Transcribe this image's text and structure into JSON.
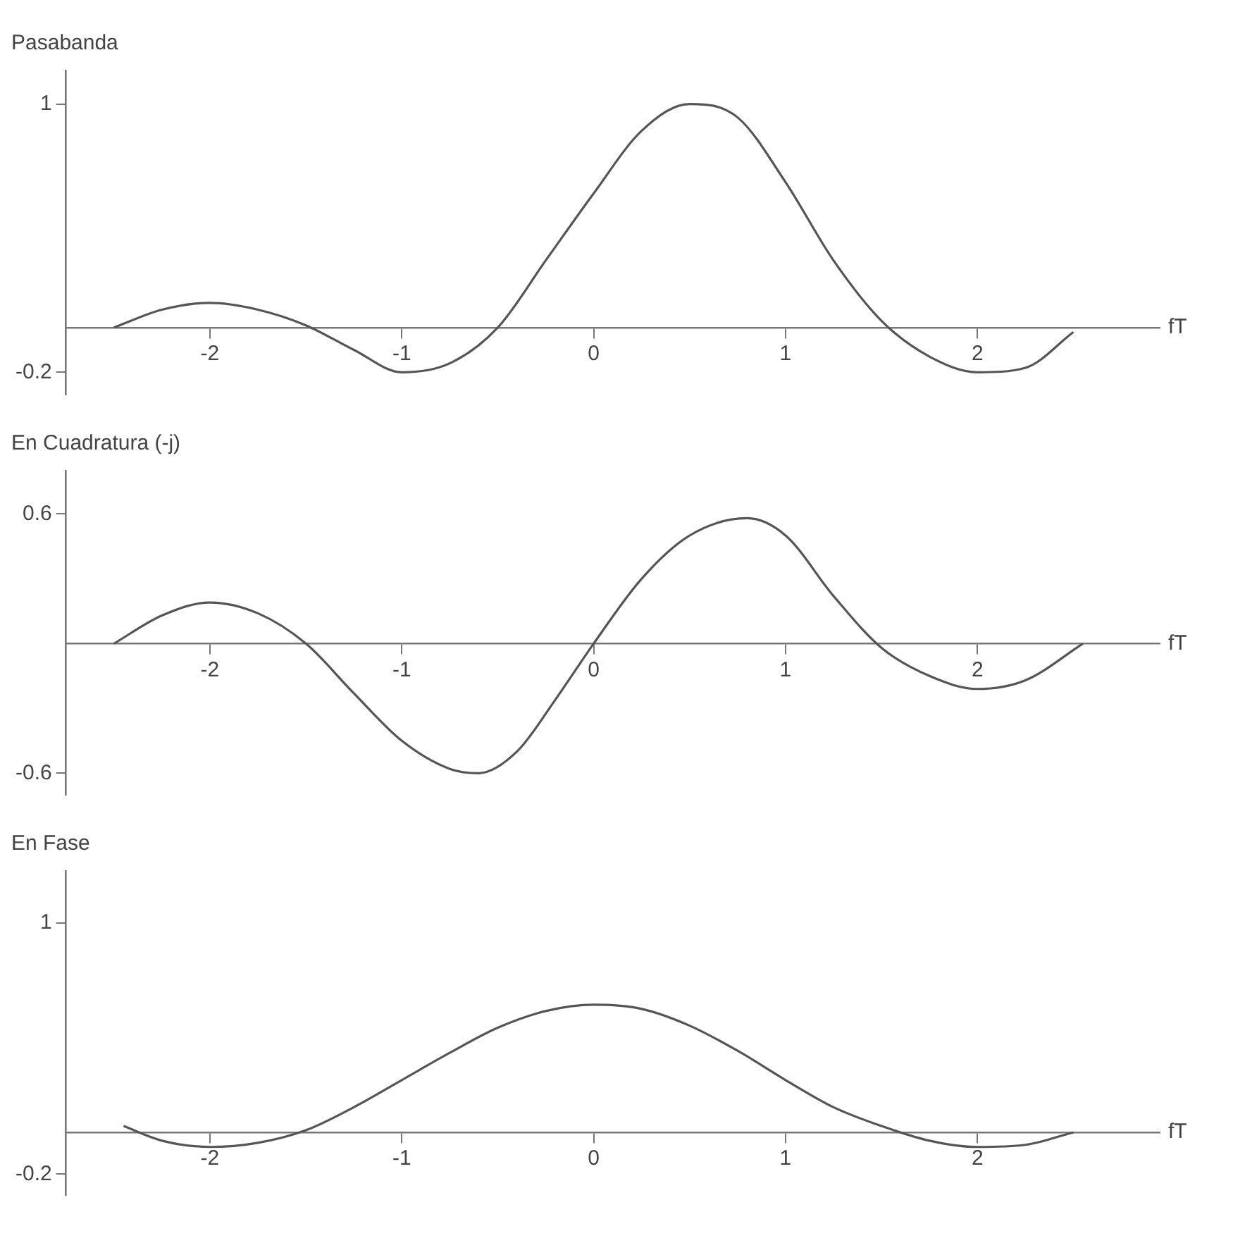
{
  "chart_data": [
    {
      "type": "line",
      "title": "Pasabanda",
      "xlabel": "fT",
      "xlim": [
        -2.75,
        2.95
      ],
      "xticks": [
        -2,
        -1,
        0,
        1,
        2
      ],
      "ylim": [
        -0.3,
        1.15
      ],
      "yticks": [
        -0.2,
        1
      ],
      "grid": false,
      "legend": false,
      "series": [
        {
          "color": "#555555",
          "x": [
            -2.5,
            -2.25,
            -2,
            -1.75,
            -1.5,
            -1.25,
            -1,
            -0.75,
            -0.5,
            -0.25,
            0,
            0.25,
            0.5,
            0.75,
            1,
            1.25,
            1.5,
            1.75,
            2,
            2.25,
            2.5
          ],
          "values": [
            0,
            0.08,
            0.11,
            0.08,
            0.01,
            -0.1,
            -0.2,
            -0.16,
            0,
            0.3,
            0.6,
            0.88,
            1.0,
            0.94,
            0.65,
            0.3,
            0.03,
            -0.13,
            -0.2,
            -0.18,
            -0.02
          ]
        }
      ]
    },
    {
      "type": "line",
      "title": "En Cuadratura (-j)",
      "xlabel": "fT",
      "xlim": [
        -2.75,
        2.95
      ],
      "xticks": [
        -2,
        -1,
        0,
        1,
        2
      ],
      "ylim": [
        -0.7,
        0.8
      ],
      "yticks": [
        -0.6,
        0.6
      ],
      "grid": false,
      "legend": false,
      "series": [
        {
          "color": "#555555",
          "x": [
            -2.5,
            -2.25,
            -2,
            -1.75,
            -1.5,
            -1.25,
            -1,
            -0.75,
            -0.6,
            -0.4,
            -0.2,
            0,
            0.25,
            0.5,
            0.8,
            1,
            1.25,
            1.5,
            1.75,
            2,
            2.25,
            2.55
          ],
          "values": [
            0,
            0.13,
            0.19,
            0.14,
            0,
            -0.23,
            -0.45,
            -0.58,
            -0.6,
            -0.5,
            -0.26,
            0,
            0.3,
            0.5,
            0.58,
            0.5,
            0.22,
            -0.02,
            -0.15,
            -0.21,
            -0.17,
            0
          ]
        }
      ]
    },
    {
      "type": "line",
      "title": "En Fase",
      "xlabel": "fT",
      "xlim": [
        -2.75,
        2.95
      ],
      "xticks": [
        -2,
        -1,
        0,
        1,
        2
      ],
      "ylim": [
        -0.3,
        1.25
      ],
      "yticks": [
        -0.2,
        1
      ],
      "grid": false,
      "legend": false,
      "series": [
        {
          "color": "#555555",
          "x": [
            -2.45,
            -2.25,
            -2,
            -1.75,
            -1.5,
            -1.25,
            -1,
            -0.75,
            -0.5,
            -0.25,
            0,
            0.25,
            0.5,
            0.75,
            1,
            1.25,
            1.5,
            1.75,
            2,
            2.25,
            2.5
          ],
          "values": [
            0.03,
            -0.04,
            -0.07,
            -0.05,
            0.01,
            0.12,
            0.25,
            0.38,
            0.5,
            0.58,
            0.61,
            0.59,
            0.51,
            0.39,
            0.25,
            0.12,
            0.03,
            -0.04,
            -0.07,
            -0.06,
            0
          ]
        }
      ]
    }
  ]
}
